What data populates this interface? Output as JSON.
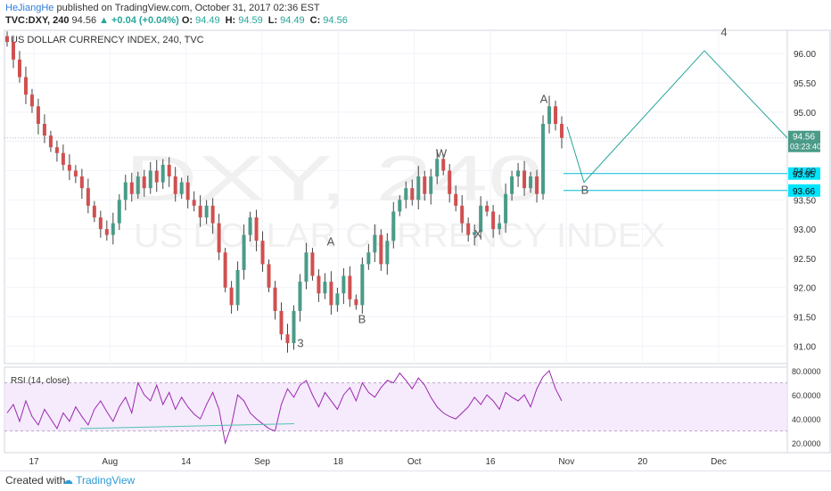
{
  "header": {
    "author": "HeJiangHe",
    "published_text": " published on TradingView.com, October 31, 2017 02:36 EST",
    "symbol": "TVC:DXY, 240",
    "price": "94.56",
    "change": "▲ +0.04 (+0.04%)",
    "o_label": "O:",
    "o_val": "94.49",
    "h_label": "H:",
    "h_val": "94.59",
    "l_label": "L:",
    "l_val": "94.49",
    "c_label": "C:",
    "c_val": "94.56"
  },
  "chart_data": {
    "type": "line",
    "title": "US DOLLAR CURRENCY INDEX, 240, TVC",
    "watermark_line1": "DXY, 240",
    "watermark_line2": "US DOLLAR CURRENCY INDEX",
    "ylim": [
      90.7,
      96.4
    ],
    "x_ticks": [
      "17",
      "Aug",
      "14",
      "Sep",
      "18",
      "Oct",
      "16",
      "Nov",
      "20",
      "Dec"
    ],
    "y_ticks": [
      "96.00",
      "95.50",
      "95.00",
      "94.50",
      "94.00",
      "93.50",
      "93.00",
      "92.50",
      "92.00",
      "91.50",
      "91.00"
    ],
    "y_tick_values": [
      96.0,
      95.5,
      95.0,
      94.5,
      94.0,
      93.5,
      93.0,
      92.5,
      92.0,
      91.5,
      91.0
    ],
    "price_series": [
      96.2,
      95.9,
      95.6,
      95.3,
      95.1,
      94.8,
      94.6,
      94.4,
      94.3,
      94.1,
      94.0,
      93.9,
      93.7,
      93.4,
      93.2,
      93.0,
      92.9,
      93.1,
      93.5,
      93.8,
      93.6,
      93.9,
      93.7,
      94.0,
      93.8,
      94.1,
      93.9,
      93.6,
      93.8,
      93.5,
      93.4,
      93.2,
      93.4,
      93.1,
      92.6,
      92.0,
      91.7,
      92.3,
      92.9,
      93.2,
      92.8,
      92.4,
      92.0,
      91.6,
      91.2,
      91.05,
      91.6,
      92.1,
      92.6,
      92.2,
      91.9,
      92.1,
      91.7,
      91.9,
      92.2,
      91.8,
      91.7,
      92.4,
      92.6,
      92.9,
      92.4,
      92.8,
      93.3,
      93.5,
      93.7,
      93.5,
      93.9,
      93.6,
      93.9,
      94.2,
      94.0,
      93.6,
      93.4,
      93.1,
      92.9,
      92.95,
      93.4,
      93.3,
      93.0,
      93.1,
      93.6,
      93.9,
      94.0,
      93.7,
      93.9,
      93.6,
      94.8,
      95.1,
      94.8,
      94.56
    ],
    "projection": [
      94.75,
      93.8,
      96.05,
      94.56
    ],
    "wave_labels": [
      "3",
      "A",
      "B",
      "W",
      "X",
      "A",
      "B",
      "4"
    ],
    "wave_label_values": [
      90.98,
      92.72,
      91.39,
      94.23,
      92.85,
      95.16,
      93.6,
      96.3
    ],
    "last_price": "94.56",
    "countdown": "03:23:40",
    "levels": [
      {
        "label": "93.95",
        "value": 93.95,
        "color": "#00bcd4"
      },
      {
        "label": "93.66",
        "value": 93.66,
        "color": "#00bcd4"
      }
    ],
    "rsi": {
      "label": "RSI (14, close)",
      "ylim": [
        12,
        83
      ],
      "y_ticks": [
        "80.0000",
        "60.0000",
        "40.0000",
        "20.0000"
      ],
      "y_tick_values": [
        80,
        60,
        40,
        20
      ],
      "band": [
        30,
        70
      ],
      "series": [
        45,
        52,
        38,
        55,
        42,
        35,
        48,
        40,
        32,
        45,
        38,
        50,
        42,
        35,
        48,
        55,
        46,
        38,
        50,
        58,
        45,
        70,
        60,
        55,
        68,
        52,
        62,
        48,
        58,
        50,
        44,
        40,
        52,
        62,
        48,
        20,
        35,
        60,
        55,
        45,
        40,
        36,
        32,
        30,
        52,
        65,
        58,
        68,
        72,
        60,
        50,
        62,
        55,
        48,
        60,
        66,
        55,
        70,
        62,
        58,
        66,
        72,
        70,
        78,
        72,
        65,
        74,
        68,
        58,
        50,
        45,
        42,
        40,
        45,
        50,
        58,
        52,
        60,
        55,
        48,
        62,
        58,
        55,
        60,
        50,
        65,
        75,
        80,
        65,
        55
      ],
      "trendline": [
        32,
        36
      ]
    }
  },
  "footer": {
    "created": "Created with",
    "brand": "TradingView"
  }
}
